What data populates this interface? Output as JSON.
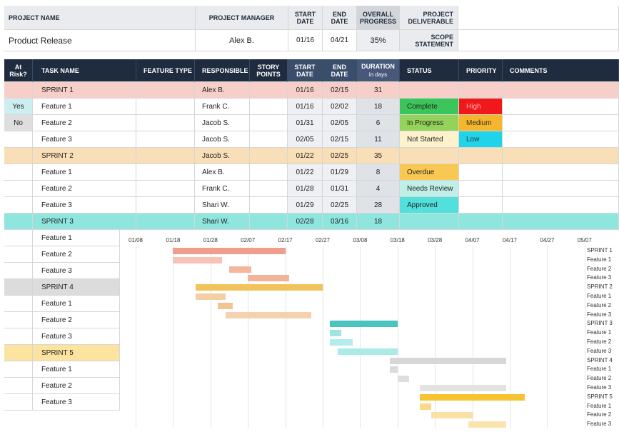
{
  "project": {
    "name_header": "PROJECT NAME",
    "manager_header": "PROJECT MANAGER",
    "start_header": "START DATE",
    "end_header": "END DATE",
    "progress_header": "OVERALL PROGRESS",
    "deliverable_header": "PROJECT DELIVERABLE",
    "scope_header": "SCOPE STATEMENT",
    "name": "Product Release",
    "manager": "Alex B.",
    "start": "01/16",
    "end": "04/21",
    "progress": "35%"
  },
  "columns": {
    "at_risk": "At Risk?",
    "task": "TASK NAME",
    "feature_type": "FEATURE TYPE",
    "responsible": "RESPONSIBLE",
    "story_points": "STORY POINTS",
    "start": "START DATE",
    "end": "END DATE",
    "duration": "DURATION",
    "duration_sub": "in days",
    "status": "STATUS",
    "priority": "PRIORITY",
    "comments": "COMMENTS"
  },
  "rows": [
    {
      "kind": "sprint",
      "color": "#f7cfc9",
      "at_risk": "",
      "task": "SPRINT 1",
      "responsible": "Alex B.",
      "start": "01/16",
      "end": "02/15",
      "duration": "31",
      "status": "",
      "priority": ""
    },
    {
      "kind": "feature",
      "at_risk": "Yes",
      "at_risk_color": "#cdeeee",
      "task": "Feature 1",
      "responsible": "Frank C.",
      "start": "01/16",
      "end": "02/02",
      "duration": "18",
      "status": "Complete",
      "status_color": "#3cc55a",
      "priority": "High",
      "priority_color": "#f01818",
      "priority_text": "#f4b7b7"
    },
    {
      "kind": "feature",
      "at_risk": "No",
      "at_risk_color": "#dedede",
      "task": "Feature 2",
      "responsible": "Jacob S.",
      "start": "01/31",
      "end": "02/05",
      "duration": "6",
      "status": "In Progress",
      "status_color": "#94d35a",
      "priority": "Medium",
      "priority_color": "#f5b62a",
      "priority_text": "#333333"
    },
    {
      "kind": "feature",
      "at_risk": "",
      "task": "Feature 3",
      "responsible": "Jacob S.",
      "start": "02/05",
      "end": "02/15",
      "duration": "11",
      "status": "Not Started",
      "status_color": "#fdf2cc",
      "priority": "Low",
      "priority_color": "#1fd3e8",
      "priority_text": "#333333"
    },
    {
      "kind": "sprint",
      "color": "#f9dfb8",
      "at_risk": "",
      "task": "SPRINT 2",
      "responsible": "Jacob S.",
      "start": "01/22",
      "end": "02/25",
      "duration": "35",
      "status": "",
      "priority": ""
    },
    {
      "kind": "feature",
      "at_risk": "",
      "task": "Feature 1",
      "responsible": "Alex B.",
      "start": "01/22",
      "end": "01/29",
      "duration": "8",
      "status": "Overdue",
      "status_color": "#f9c852",
      "priority": ""
    },
    {
      "kind": "feature",
      "at_risk": "",
      "task": "Feature 2",
      "responsible": "Frank C.",
      "start": "01/28",
      "end": "01/31",
      "duration": "4",
      "status": "Needs Review",
      "status_color": "#bfefe8",
      "priority": ""
    },
    {
      "kind": "feature",
      "at_risk": "",
      "task": "Feature 3",
      "responsible": "Shari W.",
      "start": "01/29",
      "end": "02/25",
      "duration": "28",
      "status": "Approved",
      "status_color": "#52e0dc",
      "priority": ""
    },
    {
      "kind": "sprint",
      "color": "#8fe6df",
      "at_risk": "",
      "task": "SPRINT 3",
      "responsible": "Shari W.",
      "start": "02/28",
      "end": "03/16",
      "duration": "18",
      "status": "",
      "priority": ""
    },
    {
      "kind": "feature",
      "task": "Feature 1"
    },
    {
      "kind": "feature",
      "task": "Feature 2"
    },
    {
      "kind": "feature",
      "task": "Feature 3"
    },
    {
      "kind": "sprint",
      "color": "#dcdcdc",
      "task": "SPRINT 4"
    },
    {
      "kind": "feature",
      "task": "Feature 1"
    },
    {
      "kind": "feature",
      "task": "Feature 2"
    },
    {
      "kind": "feature",
      "task": "Feature 3"
    },
    {
      "kind": "sprint",
      "color": "#fde3a0",
      "task": "SPRINT 5"
    },
    {
      "kind": "feature",
      "task": "Feature 1"
    },
    {
      "kind": "feature",
      "task": "Feature 2"
    },
    {
      "kind": "feature",
      "task": "Feature 3"
    }
  ],
  "gantt": {
    "ticks": [
      "01/08",
      "01/18",
      "01/28",
      "02/07",
      "02/17",
      "02/27",
      "03/08",
      "03/18",
      "03/28",
      "04/07",
      "04/17",
      "04/27",
      "05/07"
    ],
    "labels": [
      "SPRINT 1",
      "Feature 1",
      "Feature 2",
      "Feature 3",
      "SPRINT 2",
      "Feature 1",
      "Feature 2",
      "Feature 3",
      "SPRINT 3",
      "Feature 1",
      "Feature 2",
      "Feature 3",
      "SPRINT 4",
      "Feature 1",
      "Feature 2",
      "Feature 3",
      "SPRINT 5",
      "Feature 1",
      "Feature 2",
      "Feature 3"
    ],
    "bars": [
      {
        "start": "01/18",
        "end": "02/17",
        "color": "#ee9e8a"
      },
      {
        "start": "01/18",
        "end": "01/31",
        "color": "#f7c3b5"
      },
      {
        "start": "02/02",
        "end": "02/08",
        "color": "#f3b69e"
      },
      {
        "start": "02/07",
        "end": "02/18",
        "color": "#f2b49a"
      },
      {
        "start": "01/24",
        "end": "02/27",
        "color": "#f2c25d"
      },
      {
        "start": "01/24",
        "end": "02/01",
        "color": "#f5cfa4"
      },
      {
        "start": "01/30",
        "end": "02/03",
        "color": "#f0c495"
      },
      {
        "start": "02/01",
        "end": "02/24",
        "color": "#f4d2b0"
      },
      {
        "start": "03/01",
        "end": "03/19",
        "color": "#49c4c1"
      },
      {
        "start": "03/01",
        "end": "03/04",
        "color": "#9ee4e0"
      },
      {
        "start": "03/01",
        "end": "03/07",
        "color": "#b3ecea"
      },
      {
        "start": "03/03",
        "end": "03/19",
        "color": "#a8ebe8"
      },
      {
        "start": "03/17",
        "end": "04/17",
        "color": "#d7d7d7"
      },
      {
        "start": "03/17",
        "end": "03/19",
        "color": "#dadada"
      },
      {
        "start": "03/19",
        "end": "03/22",
        "color": "#dedede"
      },
      {
        "start": "03/25",
        "end": "04/17",
        "color": "#e2e2e2"
      },
      {
        "start": "03/25",
        "end": "04/22",
        "color": "#f7c331"
      },
      {
        "start": "03/25",
        "end": "03/28",
        "color": "#fbd98b"
      },
      {
        "start": "03/28",
        "end": "04/08",
        "color": "#fbe0a6"
      },
      {
        "start": "04/07",
        "end": "04/17",
        "color": "#fbe3ad"
      }
    ]
  }
}
